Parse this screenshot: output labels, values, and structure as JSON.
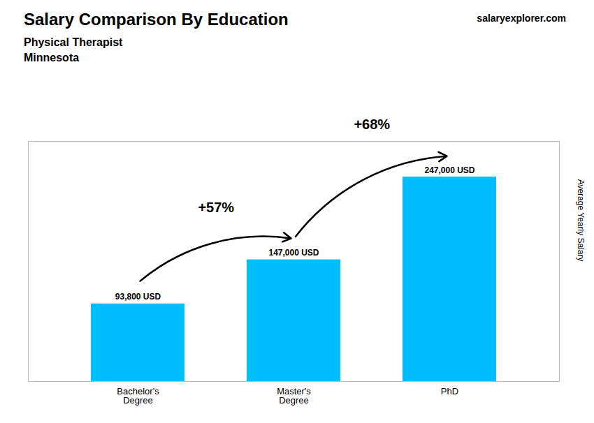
{
  "chart_data": {
    "type": "bar",
    "title": "Salary Comparison By Education",
    "subtitle": [
      "Physical Therapist",
      "Minnesota"
    ],
    "watermark": "salaryexplorer.com",
    "ylabel": "Average Yearly Salary",
    "categories": [
      "Bachelor's\nDegree",
      "Master's\nDegree",
      "PhD"
    ],
    "values": [
      93800,
      147000,
      247000
    ],
    "value_labels": [
      "93,800 USD",
      "147,000 USD",
      "247,000 USD"
    ],
    "data_labels": true,
    "color": "#00BFFF",
    "ylim": [
      0,
      290000
    ],
    "tick_labels": "x",
    "grid": false,
    "annotations": [
      {
        "text": "+57%",
        "from": "Bachelor's\nDegree",
        "to": "Master's\nDegree"
      },
      {
        "text": "+68%",
        "from": "Master's\nDegree",
        "to": "PhD"
      }
    ]
  }
}
